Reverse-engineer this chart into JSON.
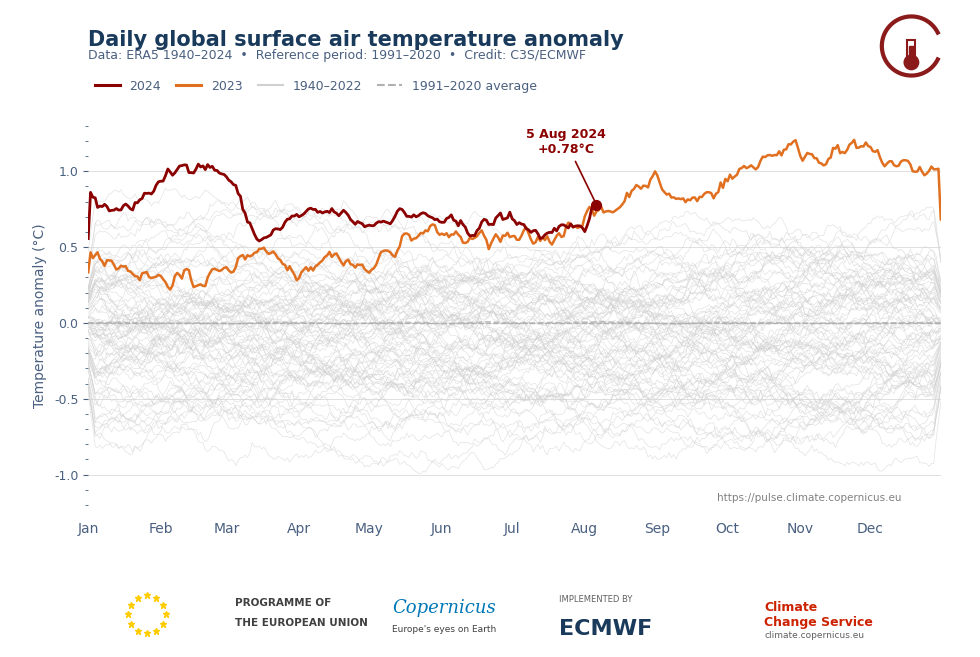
{
  "title": "Daily global surface air temperature anomaly",
  "subtitle": "Data: ERA5 1940–2024  •  Reference period: 1991–2020  •  Credit: C3S/ECMWF",
  "ylabel": "Temperature anomaly (°C)",
  "url_text": "https://pulse.climate.copernicus.eu",
  "title_color": "#1a3a5c",
  "subtitle_color": "#4a6080",
  "ylabel_color": "#4a6080",
  "url_color": "#808080",
  "color_2024": "#8b0000",
  "color_2023": "#e07020",
  "color_historical": "#d0d0d0",
  "color_avg": "#b0b0b0",
  "ylim": [
    -1.25,
    1.35
  ],
  "annotation_text": "5 Aug 2024\n+0.78°C",
  "annotation_color": "#8b0000",
  "legend_labels": [
    "2024",
    "2023",
    "1940–2022",
    "1991–2020 average"
  ],
  "months": [
    "Jan",
    "Feb",
    "Mar",
    "Apr",
    "May",
    "Jun",
    "Jul",
    "Aug",
    "Sep",
    "Oct",
    "Nov",
    "Dec"
  ],
  "n_historical_years": 82,
  "seed": 42
}
